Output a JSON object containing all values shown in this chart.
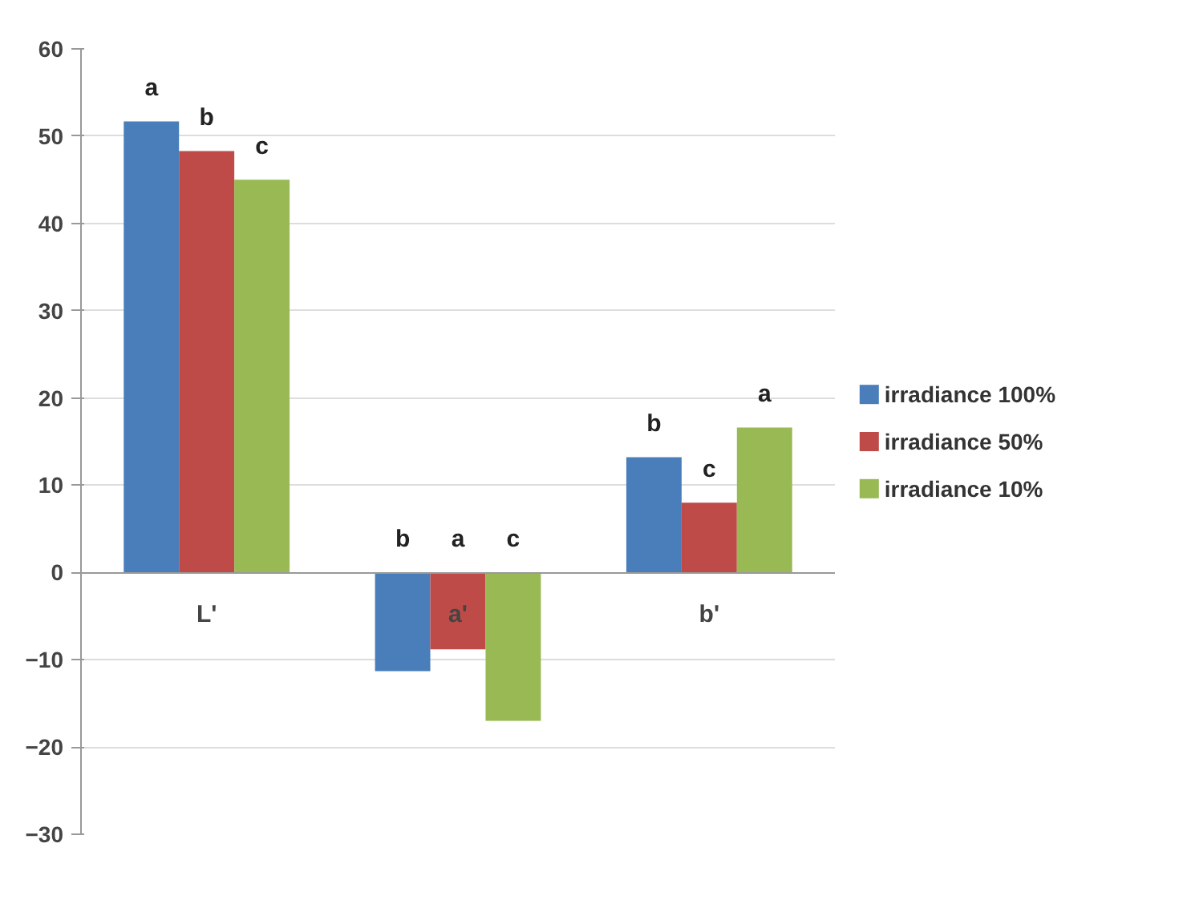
{
  "chart_data": {
    "type": "bar",
    "categories": [
      "L'",
      "a'",
      "b'"
    ],
    "series": [
      {
        "name": "irradiance 100%",
        "color": "#4a7ebb",
        "values": [
          51.7,
          -11.3,
          13.2
        ],
        "value_labels": [
          "a",
          "b",
          "b"
        ]
      },
      {
        "name": "irradiance 50%",
        "color": "#be4b48",
        "values": [
          48.3,
          -8.8,
          8.0
        ],
        "value_labels": [
          "b",
          "a",
          "c"
        ]
      },
      {
        "name": "irradiance 10%",
        "color": "#98b954",
        "values": [
          45.0,
          -17.0,
          16.6
        ],
        "value_labels": [
          "c",
          "c",
          "a"
        ]
      }
    ],
    "ylim": [
      -30,
      60
    ],
    "yticks": [
      -30,
      -20,
      -10,
      0,
      10,
      20,
      30,
      40,
      50,
      60
    ],
    "grid": "y",
    "legend": "right"
  }
}
